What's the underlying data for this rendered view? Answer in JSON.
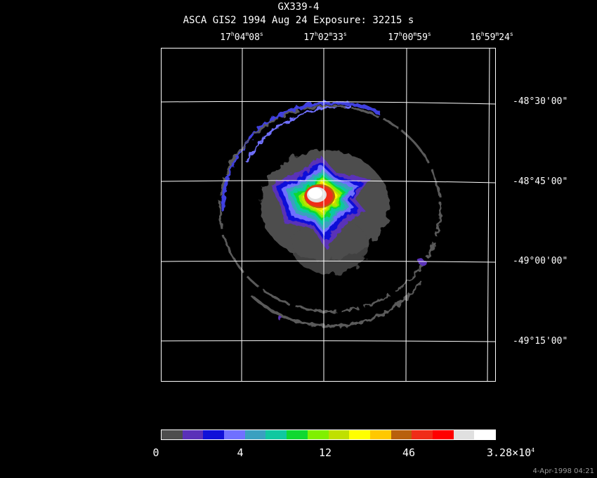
{
  "header": {
    "object": "GX339-4",
    "instrument_line": "ASCA GIS2   1994 Aug 24    Exposure: 32215 s"
  },
  "ra_labels": [
    {
      "h": "17",
      "m": "04",
      "s": "08"
    },
    {
      "h": "17",
      "m": "02",
      "s": "33"
    },
    {
      "h": "17",
      "m": "00",
      "s": "59"
    },
    {
      "h": "16",
      "m": "59",
      "s": "24"
    }
  ],
  "dec_labels": [
    "-48°30'00\"",
    "-48°45'00\"",
    "-49°00'00\"",
    "-49°15'00\""
  ],
  "colorbar": {
    "colors": [
      "#4d4d4d",
      "#5a30b8",
      "#1010d8",
      "#7070ff",
      "#3aa0c0",
      "#10c8a0",
      "#10d830",
      "#80f000",
      "#c0e000",
      "#ffff00",
      "#ffc800",
      "#b8600c",
      "#f02c18",
      "#ff0000",
      "#e0e0e0",
      "#ffffff"
    ],
    "labels": {
      "l0": "0",
      "l1": "4",
      "l2": "12",
      "l3": "46",
      "l4_base": "3.28×10",
      "l4_exp": "4"
    }
  },
  "timestamp": "4-Apr-1998 04:21"
}
